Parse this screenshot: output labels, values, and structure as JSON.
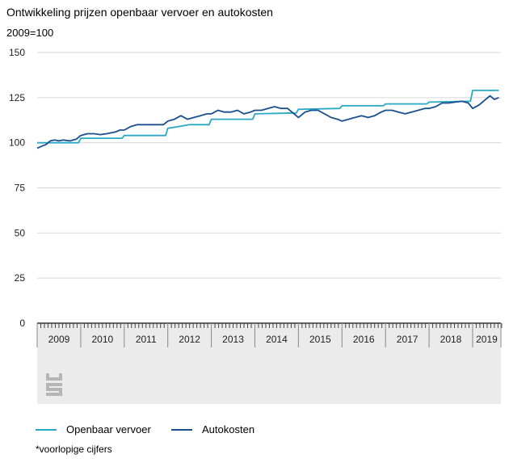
{
  "title": "Ontwikkeling prijzen openbaar vervoer en autokosten",
  "subtitle": "2009=100",
  "footnote": "*voorlopige cijfers",
  "logo_text": "cbs",
  "colors": {
    "openbaar": "#29a9c6",
    "auto": "#1a4f8f",
    "grid": "#d6d6d6",
    "band": "#ebebeb"
  },
  "chart_data": {
    "type": "line",
    "title": "Ontwikkeling prijzen openbaar vervoer en autokosten",
    "subtitle": "2009=100",
    "ylim": [
      0,
      150
    ],
    "yticks": [
      0,
      25,
      50,
      75,
      100,
      125,
      150
    ],
    "xlim": [
      2009,
      2019.65
    ],
    "year_labels": [
      "2009",
      "2010",
      "2011",
      "2012",
      "2013",
      "2014",
      "2015",
      "2016",
      "2017",
      "2018",
      "2019"
    ],
    "grid": true,
    "legend_position": "bottom",
    "series": [
      {
        "name": "Openbaar vervoer",
        "color": "#29a9c6",
        "points": [
          [
            2009.0,
            100
          ],
          [
            2009.95,
            100
          ],
          [
            2010.0,
            102.5
          ],
          [
            2010.95,
            102.5
          ],
          [
            2011.0,
            104
          ],
          [
            2011.5,
            104
          ],
          [
            2011.95,
            104
          ],
          [
            2012.0,
            108
          ],
          [
            2012.25,
            109
          ],
          [
            2012.5,
            110
          ],
          [
            2012.95,
            110
          ],
          [
            2013.0,
            113
          ],
          [
            2013.95,
            113
          ],
          [
            2014.0,
            116
          ],
          [
            2014.95,
            116.5
          ],
          [
            2015.0,
            118.5
          ],
          [
            2015.95,
            119
          ],
          [
            2016.0,
            120.5
          ],
          [
            2016.95,
            120.5
          ],
          [
            2017.0,
            121.5
          ],
          [
            2017.95,
            121.5
          ],
          [
            2018.0,
            122.5
          ],
          [
            2018.95,
            123
          ],
          [
            2019.0,
            129
          ],
          [
            2019.6,
            129
          ]
        ]
      },
      {
        "name": "Autokosten",
        "color": "#1a4f8f",
        "points": [
          [
            2009.0,
            97
          ],
          [
            2009.1,
            98
          ],
          [
            2009.2,
            99
          ],
          [
            2009.3,
            101
          ],
          [
            2009.4,
            101.5
          ],
          [
            2009.5,
            101
          ],
          [
            2009.6,
            101.5
          ],
          [
            2009.75,
            101
          ],
          [
            2009.9,
            102
          ],
          [
            2010.0,
            104
          ],
          [
            2010.15,
            105
          ],
          [
            2010.3,
            105
          ],
          [
            2010.45,
            104.5
          ],
          [
            2010.6,
            105
          ],
          [
            2010.8,
            106
          ],
          [
            2010.9,
            107
          ],
          [
            2011.0,
            107
          ],
          [
            2011.15,
            109
          ],
          [
            2011.3,
            110
          ],
          [
            2011.45,
            110
          ],
          [
            2011.6,
            110
          ],
          [
            2011.75,
            110
          ],
          [
            2011.9,
            110
          ],
          [
            2012.0,
            112
          ],
          [
            2012.15,
            113
          ],
          [
            2012.3,
            115
          ],
          [
            2012.45,
            113
          ],
          [
            2012.6,
            114
          ],
          [
            2012.75,
            115
          ],
          [
            2012.9,
            116
          ],
          [
            2013.0,
            116
          ],
          [
            2013.15,
            118
          ],
          [
            2013.3,
            117
          ],
          [
            2013.45,
            117
          ],
          [
            2013.6,
            118
          ],
          [
            2013.75,
            116
          ],
          [
            2013.9,
            117
          ],
          [
            2014.0,
            118
          ],
          [
            2014.15,
            118
          ],
          [
            2014.3,
            119
          ],
          [
            2014.45,
            120
          ],
          [
            2014.6,
            119
          ],
          [
            2014.75,
            119
          ],
          [
            2014.9,
            116
          ],
          [
            2015.0,
            114
          ],
          [
            2015.15,
            117
          ],
          [
            2015.3,
            118
          ],
          [
            2015.45,
            118
          ],
          [
            2015.6,
            116
          ],
          [
            2015.75,
            114
          ],
          [
            2015.9,
            113
          ],
          [
            2016.0,
            112
          ],
          [
            2016.15,
            113
          ],
          [
            2016.3,
            114
          ],
          [
            2016.45,
            115
          ],
          [
            2016.6,
            114
          ],
          [
            2016.75,
            115
          ],
          [
            2016.9,
            117
          ],
          [
            2017.0,
            118
          ],
          [
            2017.15,
            118
          ],
          [
            2017.3,
            117
          ],
          [
            2017.45,
            116
          ],
          [
            2017.6,
            117
          ],
          [
            2017.75,
            118
          ],
          [
            2017.9,
            119
          ],
          [
            2018.0,
            119
          ],
          [
            2018.15,
            120
          ],
          [
            2018.3,
            122
          ],
          [
            2018.45,
            122
          ],
          [
            2018.6,
            122.5
          ],
          [
            2018.75,
            123
          ],
          [
            2018.9,
            122
          ],
          [
            2019.0,
            119
          ],
          [
            2019.15,
            121
          ],
          [
            2019.3,
            124
          ],
          [
            2019.4,
            126
          ],
          [
            2019.5,
            124
          ],
          [
            2019.6,
            125
          ]
        ]
      }
    ]
  }
}
